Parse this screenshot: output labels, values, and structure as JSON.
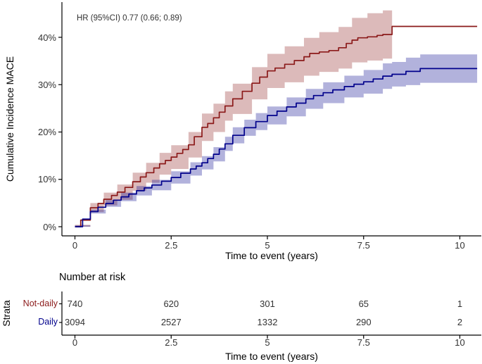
{
  "chart_data": {
    "type": "line",
    "variant": "kaplan-meier-cumulative-incidence-step-curves-with-95ci-bands",
    "title": "",
    "annotation": "HR (95%CI) 0.77 (0.66; 0.89)",
    "xlabel": "Time to event (years)",
    "ylabel": "Cumulative Incidence MACE",
    "xlim": [
      -0.35,
      10.55
    ],
    "ylim": [
      0,
      48
    ],
    "xticks": [
      0,
      2.5,
      5,
      7.5,
      10
    ],
    "xtick_labels": [
      "0",
      "2.5",
      "5",
      "7.5",
      "10"
    ],
    "yticks": [
      0,
      10,
      20,
      30,
      40
    ],
    "ytick_labels": [
      "0%",
      "10%",
      "20%",
      "30%",
      "40%"
    ],
    "grid": false,
    "legend_position": "none",
    "axis_color": "#000000",
    "tick_text_color": "#333333",
    "series": [
      {
        "name": "Not-daily",
        "color": "#8B1A1A",
        "band_color": "rgba(139,26,26,0.30)",
        "line": [
          [
            0,
            0
          ],
          [
            0.15,
            1.4
          ],
          [
            0.4,
            4.0
          ],
          [
            0.6,
            4.9
          ],
          [
            0.75,
            5.8
          ],
          [
            0.95,
            6.6
          ],
          [
            1.1,
            7.3
          ],
          [
            1.3,
            8.3
          ],
          [
            1.5,
            9.5
          ],
          [
            1.7,
            10.5
          ],
          [
            1.85,
            11.4
          ],
          [
            2.05,
            12.4
          ],
          [
            2.2,
            13.3
          ],
          [
            2.35,
            14.0
          ],
          [
            2.5,
            14.7
          ],
          [
            2.65,
            15.5
          ],
          [
            2.8,
            16.3
          ],
          [
            2.95,
            17.3
          ],
          [
            3.1,
            19.0
          ],
          [
            3.3,
            21.0
          ],
          [
            3.45,
            21.8
          ],
          [
            3.6,
            23.0
          ],
          [
            3.75,
            24.2
          ],
          [
            3.9,
            25.5
          ],
          [
            4.1,
            27.0
          ],
          [
            4.35,
            28.6
          ],
          [
            4.6,
            30.3
          ],
          [
            4.8,
            31.6
          ],
          [
            5.0,
            32.9
          ],
          [
            5.2,
            33.5
          ],
          [
            5.45,
            34.3
          ],
          [
            5.7,
            35.1
          ],
          [
            5.95,
            35.9
          ],
          [
            6.1,
            36.6
          ],
          [
            6.35,
            36.9
          ],
          [
            6.6,
            37.2
          ],
          [
            6.85,
            37.8
          ],
          [
            7.05,
            38.7
          ],
          [
            7.2,
            39.4
          ],
          [
            7.35,
            39.9
          ],
          [
            7.6,
            40.1
          ],
          [
            7.85,
            40.4
          ],
          [
            8.0,
            40.6
          ],
          [
            8.24,
            42.3
          ],
          [
            10.45,
            42.3
          ]
        ],
        "band": [
          [
            0,
            0,
            0.4
          ],
          [
            0.4,
            3.1,
            5.0
          ],
          [
            0.75,
            4.5,
            7.2
          ],
          [
            1.1,
            5.7,
            8.9
          ],
          [
            1.5,
            7.6,
            11.4
          ],
          [
            1.85,
            9.3,
            13.5
          ],
          [
            2.2,
            11.0,
            15.6
          ],
          [
            2.5,
            12.2,
            17.2
          ],
          [
            2.95,
            14.6,
            20.0
          ],
          [
            3.3,
            18.1,
            23.9
          ],
          [
            3.6,
            20.0,
            26.0
          ],
          [
            3.9,
            22.4,
            28.6
          ],
          [
            4.1,
            23.8,
            30.2
          ],
          [
            4.6,
            26.9,
            33.7
          ],
          [
            5.0,
            29.3,
            36.5
          ],
          [
            5.45,
            30.5,
            38.1
          ],
          [
            5.95,
            31.9,
            39.9
          ],
          [
            6.35,
            32.7,
            41.1
          ],
          [
            6.85,
            33.4,
            42.2
          ],
          [
            7.2,
            34.7,
            44.1
          ],
          [
            7.6,
            35.1,
            45.1
          ],
          [
            8.0,
            35.5,
            45.7
          ],
          [
            8.24,
            35.3,
            45.9
          ]
        ]
      },
      {
        "name": "Daily",
        "color": "#00008B",
        "band_color": "rgba(0,0,139,0.30)",
        "line": [
          [
            0,
            0
          ],
          [
            0.2,
            1.6
          ],
          [
            0.4,
            3.2
          ],
          [
            0.6,
            4.1
          ],
          [
            0.8,
            4.9
          ],
          [
            1.0,
            5.6
          ],
          [
            1.2,
            6.3
          ],
          [
            1.4,
            6.9
          ],
          [
            1.6,
            7.6
          ],
          [
            1.8,
            8.2
          ],
          [
            2.0,
            8.8
          ],
          [
            2.25,
            9.6
          ],
          [
            2.5,
            10.4
          ],
          [
            2.75,
            11.3
          ],
          [
            3.0,
            12.2
          ],
          [
            3.15,
            12.8
          ],
          [
            3.3,
            13.5
          ],
          [
            3.45,
            14.4
          ],
          [
            3.6,
            15.3
          ],
          [
            3.75,
            16.4
          ],
          [
            3.9,
            17.5
          ],
          [
            4.1,
            19.3
          ],
          [
            4.4,
            20.9
          ],
          [
            4.7,
            22.2
          ],
          [
            5.0,
            23.5
          ],
          [
            5.25,
            24.4
          ],
          [
            5.5,
            25.3
          ],
          [
            5.75,
            26.1
          ],
          [
            6.0,
            27.0
          ],
          [
            6.2,
            27.7
          ],
          [
            6.45,
            28.3
          ],
          [
            6.7,
            28.9
          ],
          [
            7.0,
            29.6
          ],
          [
            7.25,
            30.1
          ],
          [
            7.5,
            30.6
          ],
          [
            7.75,
            31.2
          ],
          [
            8.0,
            31.8
          ],
          [
            8.24,
            32.2
          ],
          [
            8.6,
            32.8
          ],
          [
            8.97,
            33.4
          ],
          [
            10.45,
            33.4
          ]
        ],
        "band": [
          [
            0,
            0,
            0.3
          ],
          [
            0.4,
            2.8,
            3.6
          ],
          [
            0.8,
            4.2,
            5.6
          ],
          [
            1.2,
            5.4,
            7.2
          ],
          [
            1.6,
            6.6,
            8.6
          ],
          [
            2.0,
            7.7,
            9.9
          ],
          [
            2.5,
            9.1,
            11.7
          ],
          [
            3.0,
            10.8,
            13.6
          ],
          [
            3.3,
            12.1,
            14.9
          ],
          [
            3.6,
            13.8,
            16.8
          ],
          [
            3.9,
            16.0,
            19.0
          ],
          [
            4.1,
            17.6,
            21.0
          ],
          [
            4.4,
            19.2,
            22.6
          ],
          [
            4.7,
            20.4,
            24.0
          ],
          [
            5.0,
            21.6,
            25.4
          ],
          [
            5.5,
            23.3,
            27.3
          ],
          [
            6.0,
            24.9,
            29.1
          ],
          [
            6.45,
            26.1,
            30.5
          ],
          [
            7.0,
            27.3,
            31.9
          ],
          [
            7.5,
            28.1,
            33.1
          ],
          [
            8.0,
            29.1,
            34.5
          ],
          [
            8.24,
            29.6,
            34.8
          ],
          [
            8.6,
            29.9,
            35.7
          ],
          [
            8.97,
            30.4,
            36.4
          ],
          [
            10.45,
            30.4,
            36.4
          ]
        ]
      }
    ],
    "risk_table": {
      "title": "Number at risk",
      "axis_label": "Strata",
      "xlabel": "Time to event (years)",
      "times": [
        0,
        2.5,
        5,
        7.5,
        10
      ],
      "rows": [
        {
          "label": "Not-daily",
          "color": "#8B1A1A",
          "counts": [
            "740",
            "620",
            "301",
            "65",
            "1"
          ]
        },
        {
          "label": "Daily",
          "color": "#00008B",
          "counts": [
            "3094",
            "2527",
            "1332",
            "290",
            "2"
          ]
        }
      ]
    }
  }
}
